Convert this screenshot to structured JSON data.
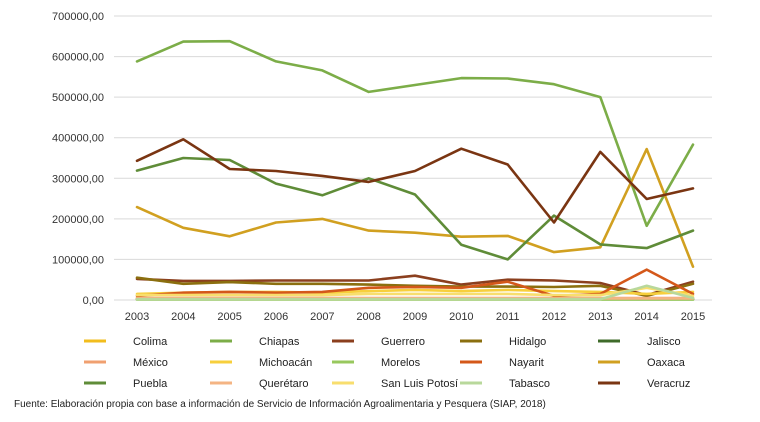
{
  "chart_data": {
    "type": "line",
    "title": "",
    "xlabel": "",
    "ylabel": "",
    "x": [
      "2003",
      "2004",
      "2005",
      "2006",
      "2007",
      "2008",
      "2009",
      "2010",
      "2011",
      "2012",
      "2013",
      "2014",
      "2015"
    ],
    "ylim": [
      0,
      700000
    ],
    "yticks": [
      "0,00",
      "100000,00",
      "200000,00",
      "300000,00",
      "400000,00",
      "500000,00",
      "600000,00",
      "700000,00"
    ],
    "grid": true,
    "legend_position": "bottom",
    "series": [
      {
        "name": "Colima",
        "color": "#f2bd1d",
        "values": [
          3000,
          3000,
          3000,
          3000,
          3000,
          3000,
          3000,
          3000,
          3000,
          3000,
          3000,
          3000,
          3000
        ]
      },
      {
        "name": "Chiapas",
        "color": "#7cad48",
        "values": [
          588000,
          637000,
          638000,
          588000,
          566000,
          513000,
          530000,
          547000,
          546000,
          532000,
          500000,
          183000,
          383000
        ]
      },
      {
        "name": "Guerrero",
        "color": "#8b3f1e",
        "values": [
          52000,
          47000,
          47000,
          48000,
          48000,
          48000,
          60000,
          38000,
          50000,
          48000,
          42000,
          12000,
          45000
        ]
      },
      {
        "name": "Hidalgo",
        "color": "#8b6f0f",
        "values": [
          55000,
          40000,
          44000,
          40000,
          40000,
          38000,
          35000,
          33000,
          33000,
          32000,
          35000,
          10000,
          40000
        ]
      },
      {
        "name": "Jalisco",
        "color": "#3f6b2a",
        "values": [
          2000,
          2000,
          2000,
          2000,
          2000,
          2000,
          2000,
          2000,
          2000,
          2000,
          2000,
          2000,
          2000
        ]
      },
      {
        "name": "México",
        "color": "#f0a070",
        "values": [
          5000,
          5000,
          5000,
          5000,
          5000,
          5000,
          5000,
          5000,
          5000,
          5000,
          5000,
          5000,
          5000
        ]
      },
      {
        "name": "Michoacán",
        "color": "#f7cf3c",
        "values": [
          15000,
          18000,
          20000,
          20000,
          18000,
          22000,
          25000,
          22000,
          25000,
          22000,
          20000,
          15000,
          20000
        ]
      },
      {
        "name": "Morelos",
        "color": "#98c85e",
        "values": [
          1000,
          1000,
          1000,
          1000,
          1000,
          1000,
          1000,
          1000,
          1000,
          1000,
          1000,
          1000,
          1000
        ]
      },
      {
        "name": "Nayarit",
        "color": "#d4581a",
        "values": [
          10000,
          18000,
          20000,
          18000,
          20000,
          30000,
          32000,
          30000,
          45000,
          10000,
          15000,
          75000,
          15000
        ]
      },
      {
        "name": "Oaxaca",
        "color": "#d1a020",
        "values": [
          229000,
          178000,
          157000,
          191000,
          200000,
          171000,
          166000,
          156000,
          158000,
          118000,
          130000,
          372000,
          82000
        ]
      },
      {
        "name": "Puebla",
        "color": "#5f8c38",
        "values": [
          319000,
          350000,
          345000,
          287000,
          258000,
          300000,
          260000,
          136000,
          100000,
          208000,
          137000,
          128000,
          171000
        ]
      },
      {
        "name": "Querétaro",
        "color": "#f4b483",
        "values": [
          4000,
          4000,
          4000,
          4000,
          4000,
          4000,
          4000,
          4000,
          4000,
          4000,
          4000,
          4000,
          4000
        ]
      },
      {
        "name": "San Luis Potosí",
        "color": "#f8de6e",
        "values": [
          12000,
          12000,
          12000,
          12000,
          12000,
          15000,
          15000,
          15000,
          15000,
          12000,
          12000,
          30000,
          10000
        ]
      },
      {
        "name": "Tabasco",
        "color": "#b8d89b",
        "values": [
          2000,
          2000,
          2000,
          2000,
          2000,
          2000,
          2000,
          2000,
          2000,
          2000,
          2000,
          35000,
          5000
        ]
      },
      {
        "name": "Veracruz",
        "color": "#7a3512",
        "values": [
          343000,
          396000,
          323000,
          318000,
          306000,
          291000,
          318000,
          373000,
          334000,
          191000,
          365000,
          249000,
          275000
        ]
      }
    ]
  },
  "source_note": "Fuente: Elaboración propia con base a información de Servicio de Información Agroalimentaria y Pesquera (SIAP, 2018)"
}
